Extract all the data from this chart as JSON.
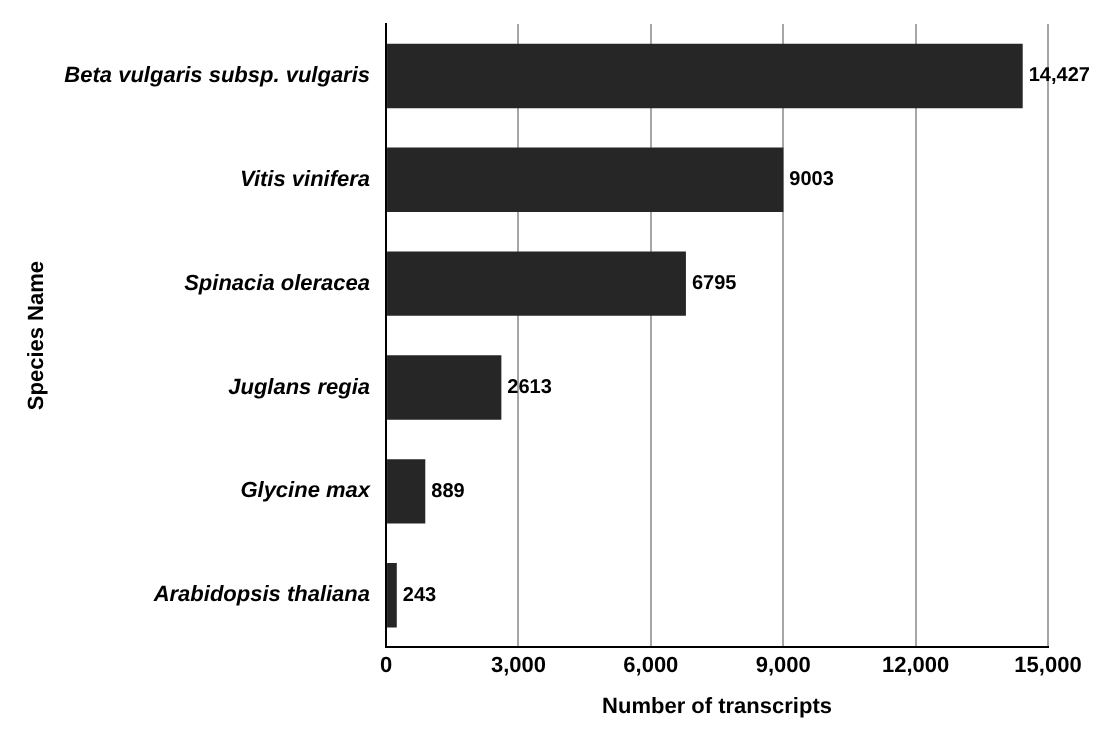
{
  "chart_data": {
    "type": "bar",
    "orientation": "horizontal",
    "xlabel": "Number of transcripts",
    "ylabel": "Species Name",
    "categories": [
      "Beta vulgaris subsp. vulgaris",
      "Vitis vinifera",
      "Spinacia oleracea",
      "Juglans regia",
      "Glycine max",
      "Arabidopsis thaliana"
    ],
    "values": [
      14427,
      9003,
      6795,
      2613,
      889,
      243
    ],
    "value_labels": [
      "14,427",
      "9003",
      "6795",
      "2613",
      "889",
      "243"
    ],
    "color": "#262626",
    "xlim": [
      0,
      15000
    ],
    "xticks": [
      0,
      {
        "value": 3000,
        "label": "3,000"
      },
      {
        "value": 6000,
        "label": "6,000"
      },
      {
        "value": 9000,
        "label": "9,000"
      },
      {
        "value": 12000,
        "label": "12,000"
      },
      {
        "value": 15000,
        "label": "15,000"
      }
    ],
    "grid": "x"
  }
}
